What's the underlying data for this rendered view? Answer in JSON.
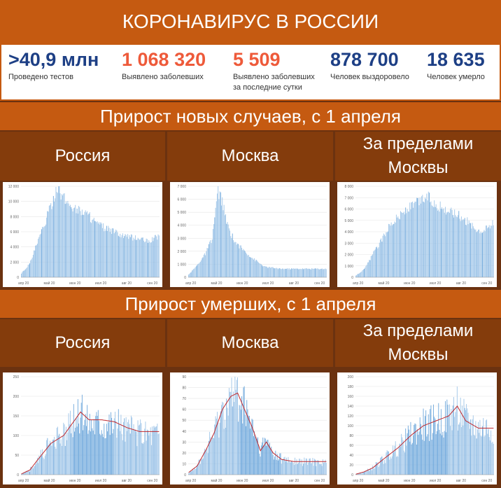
{
  "title": "КОРОНАВИРУС В РОССИИ",
  "stats": [
    {
      "value": ">40,9 млн",
      "label": "Проведено тестов",
      "color": "#1d3f85"
    },
    {
      "value": "1 068 320",
      "label": "Выявлено заболевших",
      "color": "#ee5a3a"
    },
    {
      "value": "5 509",
      "label": "Выявлено заболевших за последние сутки",
      "color": "#ee5a3a"
    },
    {
      "value": "878 700",
      "label": "Человек выздоровело",
      "color": "#1d3f85"
    },
    {
      "value": "18 635",
      "label": "Человек умерло",
      "color": "#1d3f85"
    }
  ],
  "sections": {
    "cases_title": "Прирост новых случаев, с 1 апреля",
    "deaths_title": "Прирост умерших, с 1 апреля"
  },
  "regions": [
    "Россия",
    "Москва",
    "За пределами Москвы"
  ],
  "colors": {
    "band": "#c55a11",
    "header": "#843c0c",
    "bar": "#9fc5e8",
    "bar_dark": "#6fa8dc",
    "line": "#c0282d"
  },
  "chart_data": [
    {
      "type": "bar",
      "name": "cases-russia",
      "x_ticks": [
        "апр 20",
        "май 20",
        "июн 20",
        "июл 20",
        "авг 20",
        "сен 20"
      ],
      "ylim": [
        0,
        12000
      ],
      "y_ticks": [
        0,
        2000,
        4000,
        6000,
        8000,
        10000,
        12000
      ],
      "key_points": [
        [
          0,
          500
        ],
        [
          10,
          1800
        ],
        [
          20,
          4800
        ],
        [
          30,
          7800
        ],
        [
          40,
          11000
        ],
        [
          45,
          11200
        ],
        [
          55,
          9800
        ],
        [
          65,
          9000
        ],
        [
          75,
          8600
        ],
        [
          90,
          7000
        ],
        [
          105,
          6200
        ],
        [
          120,
          5400
        ],
        [
          140,
          5100
        ],
        [
          150,
          4700
        ],
        [
          163,
          5500
        ]
      ]
    },
    {
      "type": "bar",
      "name": "cases-moscow",
      "x_ticks": [
        "апр 20",
        "май 20",
        "июн 20",
        "июл 20",
        "авг 20",
        "сен 20"
      ],
      "ylim": [
        0,
        7000
      ],
      "y_ticks": [
        0,
        1000,
        2000,
        3000,
        4000,
        5000,
        6000,
        7000
      ],
      "key_points": [
        [
          0,
          200
        ],
        [
          10,
          900
        ],
        [
          20,
          1800
        ],
        [
          28,
          3000
        ],
        [
          32,
          5200
        ],
        [
          35,
          6600
        ],
        [
          40,
          5800
        ],
        [
          45,
          4200
        ],
        [
          50,
          3400
        ],
        [
          55,
          2700
        ],
        [
          65,
          2100
        ],
        [
          75,
          1500
        ],
        [
          90,
          800
        ],
        [
          110,
          650
        ],
        [
          163,
          650
        ]
      ]
    },
    {
      "type": "bar",
      "name": "cases-outside",
      "x_ticks": [
        "апр 20",
        "май 20",
        "июн 20",
        "июл 20",
        "авг 20",
        "сен 20"
      ],
      "ylim": [
        0,
        8000
      ],
      "y_ticks": [
        0,
        1000,
        2000,
        3000,
        4000,
        5000,
        6000,
        7000,
        8000
      ],
      "key_points": [
        [
          0,
          150
        ],
        [
          10,
          700
        ],
        [
          20,
          2000
        ],
        [
          30,
          3200
        ],
        [
          40,
          4600
        ],
        [
          55,
          5600
        ],
        [
          70,
          6400
        ],
        [
          85,
          7100
        ],
        [
          95,
          6300
        ],
        [
          110,
          5900
        ],
        [
          125,
          5300
        ],
        [
          140,
          4400
        ],
        [
          150,
          4100
        ],
        [
          163,
          4700
        ]
      ]
    },
    {
      "type": "bar",
      "name": "deaths-russia",
      "x_ticks": [
        "апр 20",
        "май 20",
        "июн 20",
        "июл 20",
        "авг 20",
        "сен 20"
      ],
      "ylim": [
        0,
        250
      ],
      "y_ticks": [
        0,
        50,
        100,
        150,
        200,
        250
      ],
      "key_points": [
        [
          0,
          2
        ],
        [
          10,
          12
        ],
        [
          20,
          40
        ],
        [
          35,
          80
        ],
        [
          50,
          100
        ],
        [
          60,
          130
        ],
        [
          70,
          160
        ],
        [
          80,
          140
        ],
        [
          95,
          140
        ],
        [
          110,
          135
        ],
        [
          125,
          120
        ],
        [
          140,
          110
        ],
        [
          163,
          110
        ]
      ]
    },
    {
      "type": "bar",
      "name": "deaths-moscow",
      "x_ticks": [
        "апр 20",
        "май 20",
        "июн 20",
        "июл 20",
        "авг 20",
        "сен 20"
      ],
      "ylim": [
        0,
        90
      ],
      "y_ticks": [
        0,
        10,
        20,
        30,
        40,
        50,
        60,
        70,
        80,
        90
      ],
      "key_points": [
        [
          0,
          2
        ],
        [
          10,
          8
        ],
        [
          20,
          22
        ],
        [
          30,
          38
        ],
        [
          40,
          60
        ],
        [
          50,
          72
        ],
        [
          58,
          75
        ],
        [
          65,
          62
        ],
        [
          75,
          44
        ],
        [
          85,
          22
        ],
        [
          92,
          30
        ],
        [
          100,
          20
        ],
        [
          110,
          14
        ],
        [
          125,
          12
        ],
        [
          163,
          12
        ]
      ]
    },
    {
      "type": "bar",
      "name": "deaths-outside",
      "x_ticks": [
        "апр 20",
        "май 20",
        "июн 20",
        "июл 20",
        "авг 20",
        "сен 20"
      ],
      "ylim": [
        0,
        200
      ],
      "y_ticks": [
        0,
        20,
        40,
        60,
        80,
        100,
        120,
        140,
        160,
        180,
        200
      ],
      "key_points": [
        [
          0,
          1
        ],
        [
          10,
          6
        ],
        [
          20,
          14
        ],
        [
          35,
          35
        ],
        [
          50,
          55
        ],
        [
          65,
          80
        ],
        [
          80,
          100
        ],
        [
          95,
          110
        ],
        [
          110,
          120
        ],
        [
          120,
          140
        ],
        [
          130,
          110
        ],
        [
          145,
          95
        ],
        [
          163,
          95
        ]
      ]
    }
  ]
}
